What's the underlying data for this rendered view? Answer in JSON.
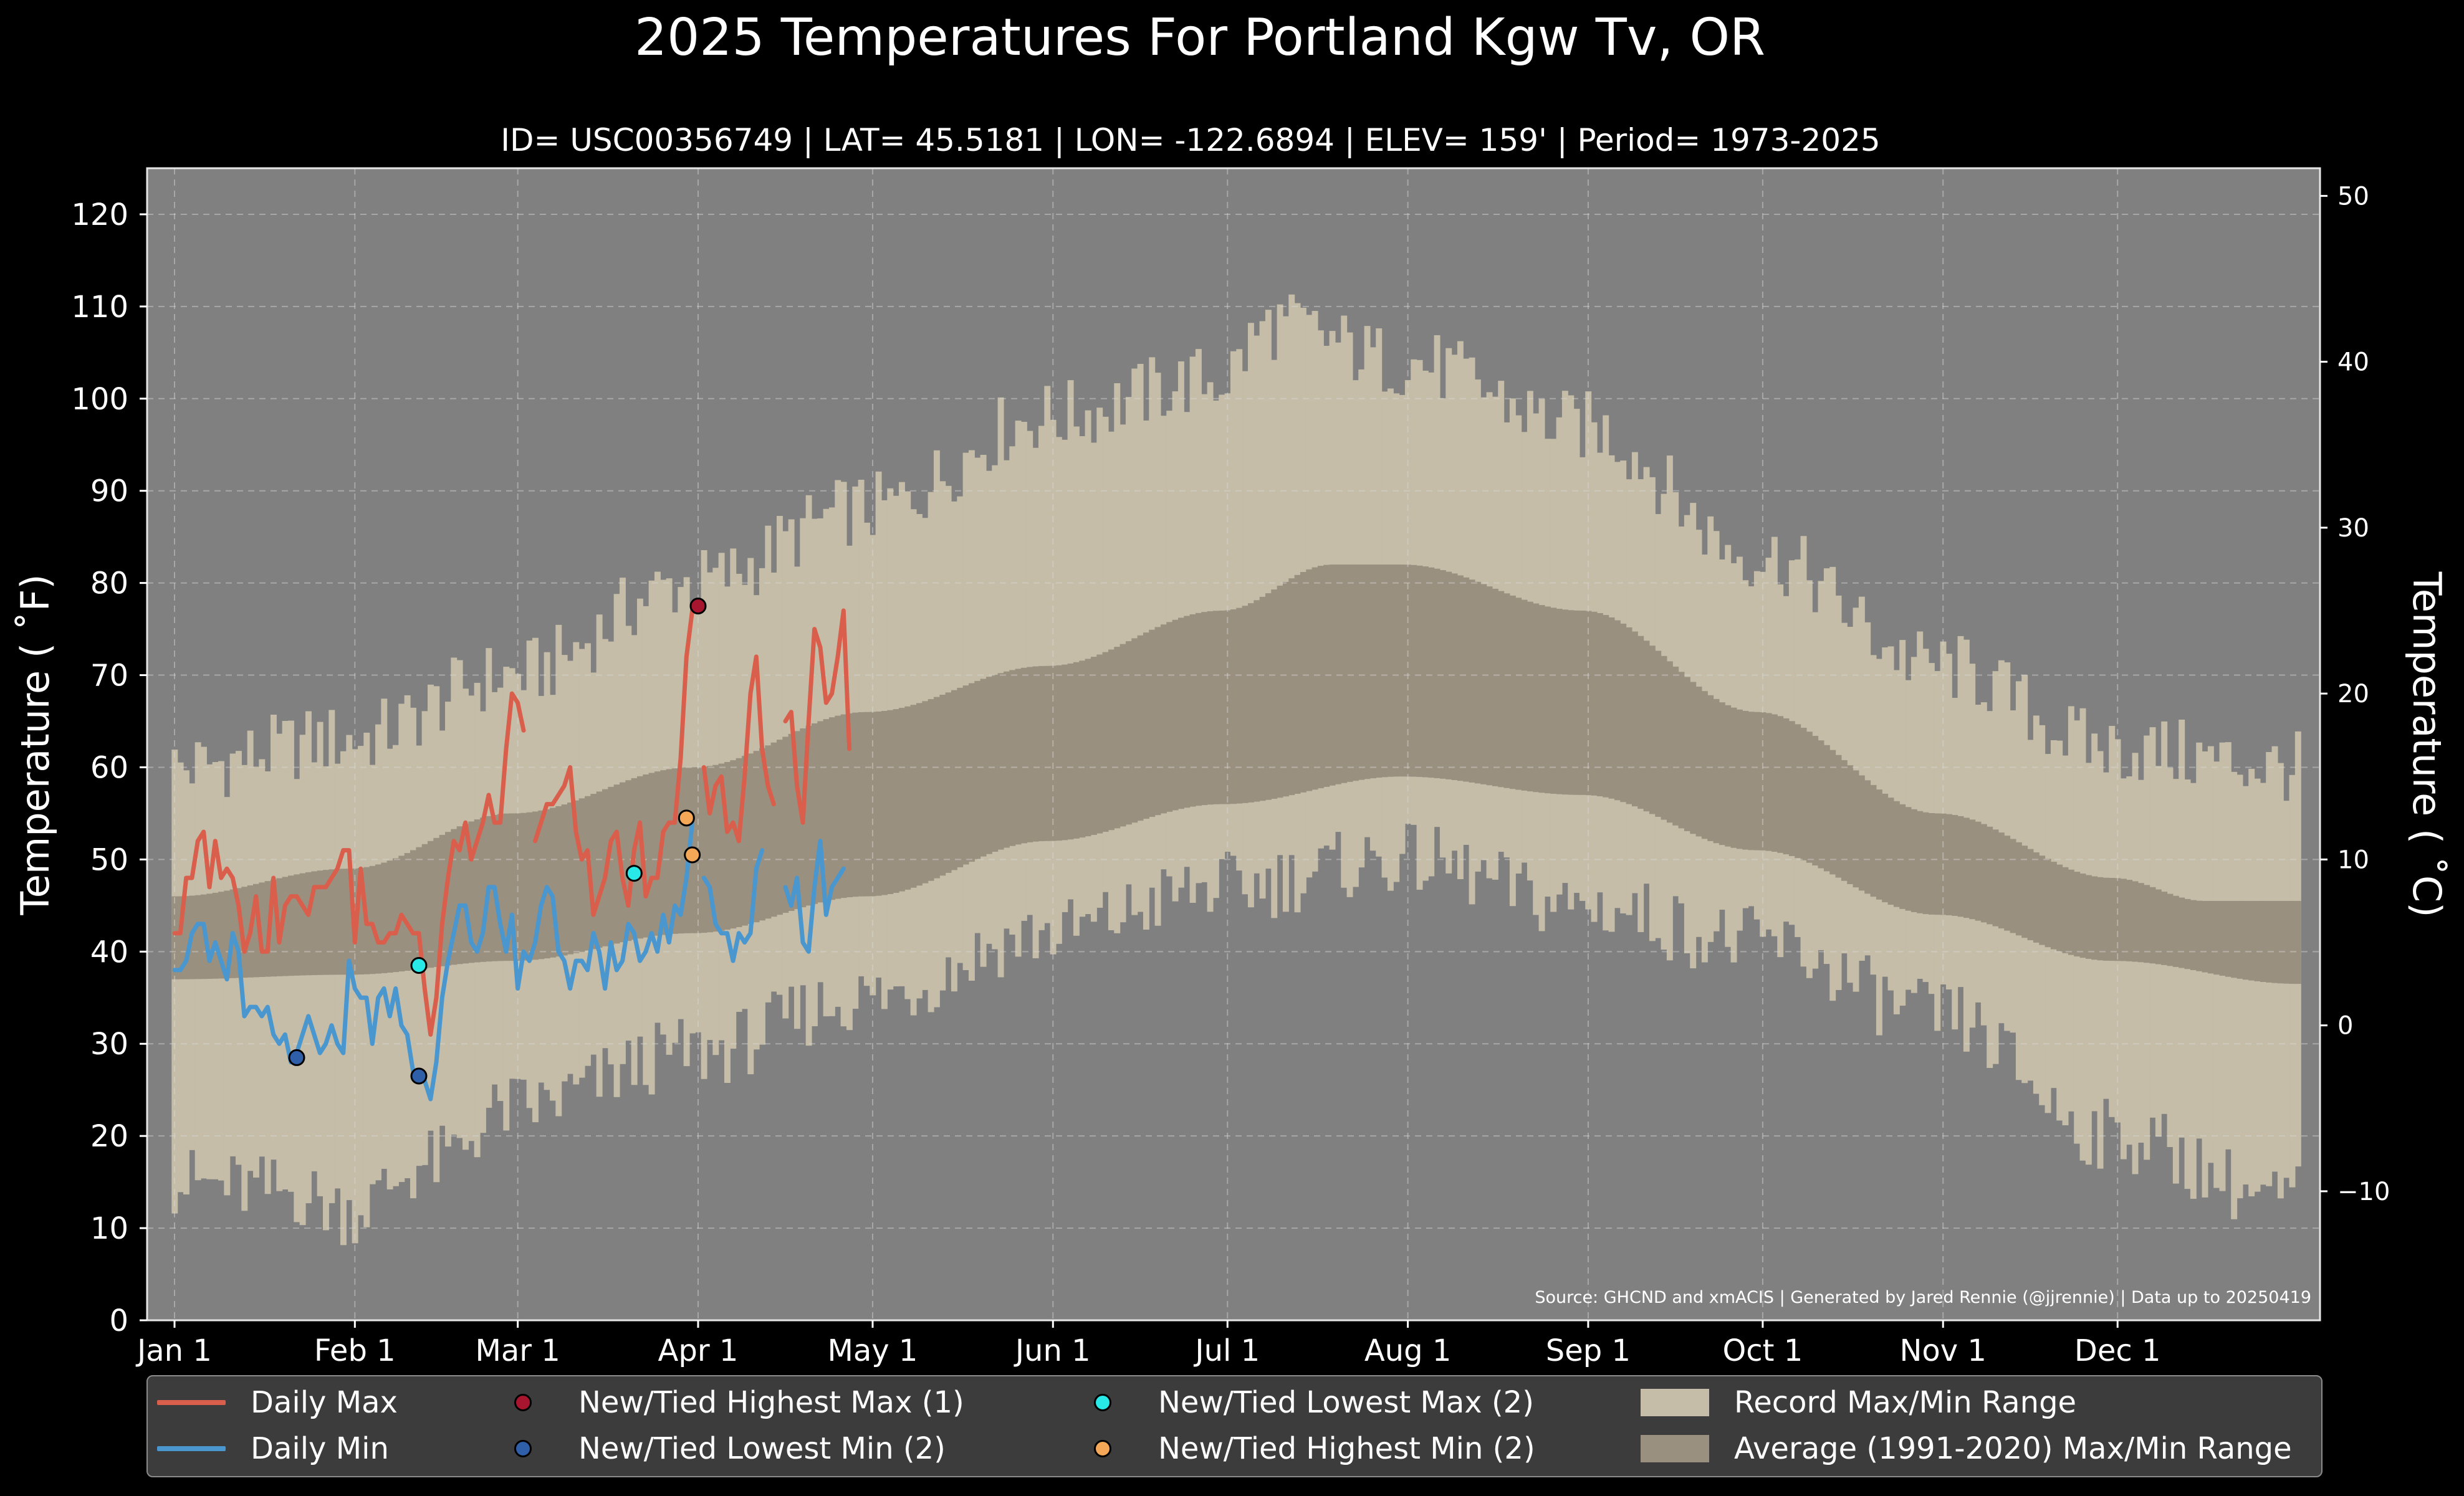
{
  "chart_data": {
    "type": "line",
    "title": "2025 Temperatures For Portland Kgw Tv, OR",
    "subtitle": "ID= USC00356749 | LAT= 45.5181 | LON= -122.6894 | ELEV= 159' | Period= 1973-2025",
    "ylabel": "Temperature ($^\\circ$F)",
    "ylabel_display": "Temperature ( ˚F)",
    "y2label_display": "Temperature ( ˚C)",
    "source": "Source: GHCND and xmACIS | Generated by Jared Rennie (@jjrennie) | Data up to 20250419",
    "ylim": [
      0,
      125
    ],
    "yticks": [
      0,
      10,
      20,
      30,
      40,
      50,
      60,
      70,
      80,
      90,
      100,
      110,
      120
    ],
    "y2ticks_c": [
      50,
      40,
      30,
      20,
      10,
      0,
      -10
    ],
    "y2tick_labels": [
      "50",
      "40",
      "30",
      "20",
      "10",
      "0",
      "−10"
    ],
    "xlim_days": [
      1,
      366
    ],
    "x_tick_labels": [
      "Jan 1",
      "Feb 1",
      "Mar 1",
      "Apr 1",
      "May 1",
      "Jun 1",
      "Jul 1",
      "Aug 1",
      "Sep 1",
      "Oct 1",
      "Nov 1",
      "Dec 1"
    ],
    "x_tick_days": [
      1,
      32,
      60,
      91,
      121,
      152,
      182,
      213,
      244,
      274,
      305,
      335
    ],
    "grid": true,
    "legend_position": "bottom",
    "colors": {
      "background": "#000000",
      "plot_bg": "#808080",
      "record_range": "#c5bda8",
      "average_range": "#9a907f",
      "daily_max": "#d95f4c",
      "daily_min": "#4a96cf",
      "highest_max": "#a8152e",
      "lowest_min": "#2f5fa8",
      "lowest_max": "#28e8e8",
      "highest_min": "#f4a857"
    },
    "record_max_anchors": [
      [
        1,
        60
      ],
      [
        31,
        63
      ],
      [
        59,
        70
      ],
      [
        90,
        80
      ],
      [
        120,
        88
      ],
      [
        151,
        98
      ],
      [
        180,
        102
      ],
      [
        190,
        108
      ],
      [
        212,
        104
      ],
      [
        243,
        97
      ],
      [
        273,
        83
      ],
      [
        304,
        71
      ],
      [
        334,
        62
      ],
      [
        365,
        60
      ]
    ],
    "record_min_anchors": [
      [
        1,
        15
      ],
      [
        20,
        14
      ],
      [
        31,
        12
      ],
      [
        45,
        17
      ],
      [
        59,
        23
      ],
      [
        90,
        29
      ],
      [
        120,
        35
      ],
      [
        151,
        42
      ],
      [
        181,
        47
      ],
      [
        212,
        50
      ],
      [
        243,
        45
      ],
      [
        273,
        41
      ],
      [
        304,
        33
      ],
      [
        334,
        20
      ],
      [
        365,
        13
      ]
    ],
    "average_max_anchors": [
      [
        1,
        46
      ],
      [
        31,
        49
      ],
      [
        59,
        55
      ],
      [
        90,
        60
      ],
      [
        120,
        66
      ],
      [
        151,
        71
      ],
      [
        181,
        77
      ],
      [
        200,
        82
      ],
      [
        212,
        82
      ],
      [
        243,
        77
      ],
      [
        273,
        66
      ],
      [
        304,
        55
      ],
      [
        334,
        48
      ],
      [
        350,
        45.5
      ],
      [
        366,
        45.5
      ]
    ],
    "average_min_anchors": [
      [
        1,
        37
      ],
      [
        31,
        37.5
      ],
      [
        59,
        39
      ],
      [
        90,
        42
      ],
      [
        120,
        46
      ],
      [
        151,
        52
      ],
      [
        181,
        56
      ],
      [
        212,
        59
      ],
      [
        243,
        57
      ],
      [
        273,
        51
      ],
      [
        304,
        44
      ],
      [
        334,
        39
      ],
      [
        366,
        36.5
      ]
    ],
    "series": [
      {
        "name": "Daily Max",
        "start_day": 1,
        "values": [
          42,
          42,
          48,
          48,
          52,
          53,
          47,
          52,
          48,
          49,
          48,
          45,
          40,
          42,
          46,
          40,
          40,
          48,
          41,
          45,
          46,
          46,
          45,
          44,
          47,
          47,
          47,
          48,
          49,
          51,
          51,
          41,
          49,
          43,
          43,
          41,
          41,
          42,
          42,
          44,
          43,
          42,
          42,
          36,
          31,
          35,
          43,
          48,
          52,
          51,
          54,
          50,
          52,
          54,
          57,
          54,
          54,
          62,
          68,
          67,
          64,
          null,
          52,
          54,
          56,
          56,
          57,
          58,
          60,
          53,
          50,
          51,
          44,
          46,
          48,
          52,
          53,
          48,
          45,
          51,
          54,
          46,
          48,
          48,
          53,
          54,
          54,
          61,
          72,
          77,
          null,
          60,
          55,
          58,
          59,
          53,
          54,
          52,
          59,
          68,
          72,
          62,
          58,
          56,
          null,
          65,
          66,
          58,
          54,
          65,
          75,
          73,
          67,
          68,
          72,
          77,
          62
        ]
      },
      {
        "name": "Daily Min",
        "start_day": 1,
        "values": [
          38,
          38,
          39,
          42,
          43,
          43,
          39,
          41,
          39,
          37,
          42,
          40,
          33,
          34,
          34,
          33,
          34,
          31,
          30,
          31,
          28,
          29,
          31,
          33,
          31,
          29,
          30,
          32,
          30,
          29,
          39,
          36,
          35,
          35,
          30,
          35,
          36,
          33,
          36,
          32,
          31,
          27,
          26,
          26,
          24,
          28,
          35,
          39,
          42,
          45,
          45,
          41,
          40,
          42,
          47,
          47,
          43,
          40,
          44,
          36,
          40,
          39,
          41,
          45,
          47,
          46,
          40,
          39,
          36,
          39,
          39,
          38,
          42,
          40,
          36,
          41,
          38,
          39,
          43,
          42,
          39,
          40,
          42,
          40,
          44,
          41,
          45,
          44,
          48,
          54,
          null,
          48,
          47,
          43,
          42,
          42,
          39,
          42,
          41,
          42,
          49,
          51,
          null,
          null,
          null,
          47,
          45,
          48,
          41,
          40,
          47,
          52,
          44,
          47,
          48,
          49
        ]
      },
      {
        "name": "New/Tied Highest Max (1)",
        "points": [
          [
            91,
            77.5
          ]
        ]
      },
      {
        "name": "New/Tied Lowest Min (2)",
        "points": [
          [
            22,
            28.5
          ],
          [
            43,
            26.5
          ]
        ]
      },
      {
        "name": "New/Tied Lowest Max (2)",
        "points": [
          [
            43,
            38.5
          ],
          [
            80,
            48.5
          ]
        ]
      },
      {
        "name": "New/Tied Highest Min (2)",
        "points": [
          [
            89,
            54.5
          ],
          [
            90,
            50.5
          ]
        ]
      },
      {
        "name": "Record Max/Min Range"
      },
      {
        "name": "Average (1991-2020) Max/Min Range"
      }
    ]
  },
  "legend": [
    "Daily Max",
    "Daily Min",
    "New/Tied Highest Max (1)",
    "New/Tied Lowest Min (2)",
    "New/Tied Lowest Max (2)",
    "New/Tied Highest Min (2)",
    "Record Max/Min Range",
    "Average (1991-2020) Max/Min Range"
  ]
}
